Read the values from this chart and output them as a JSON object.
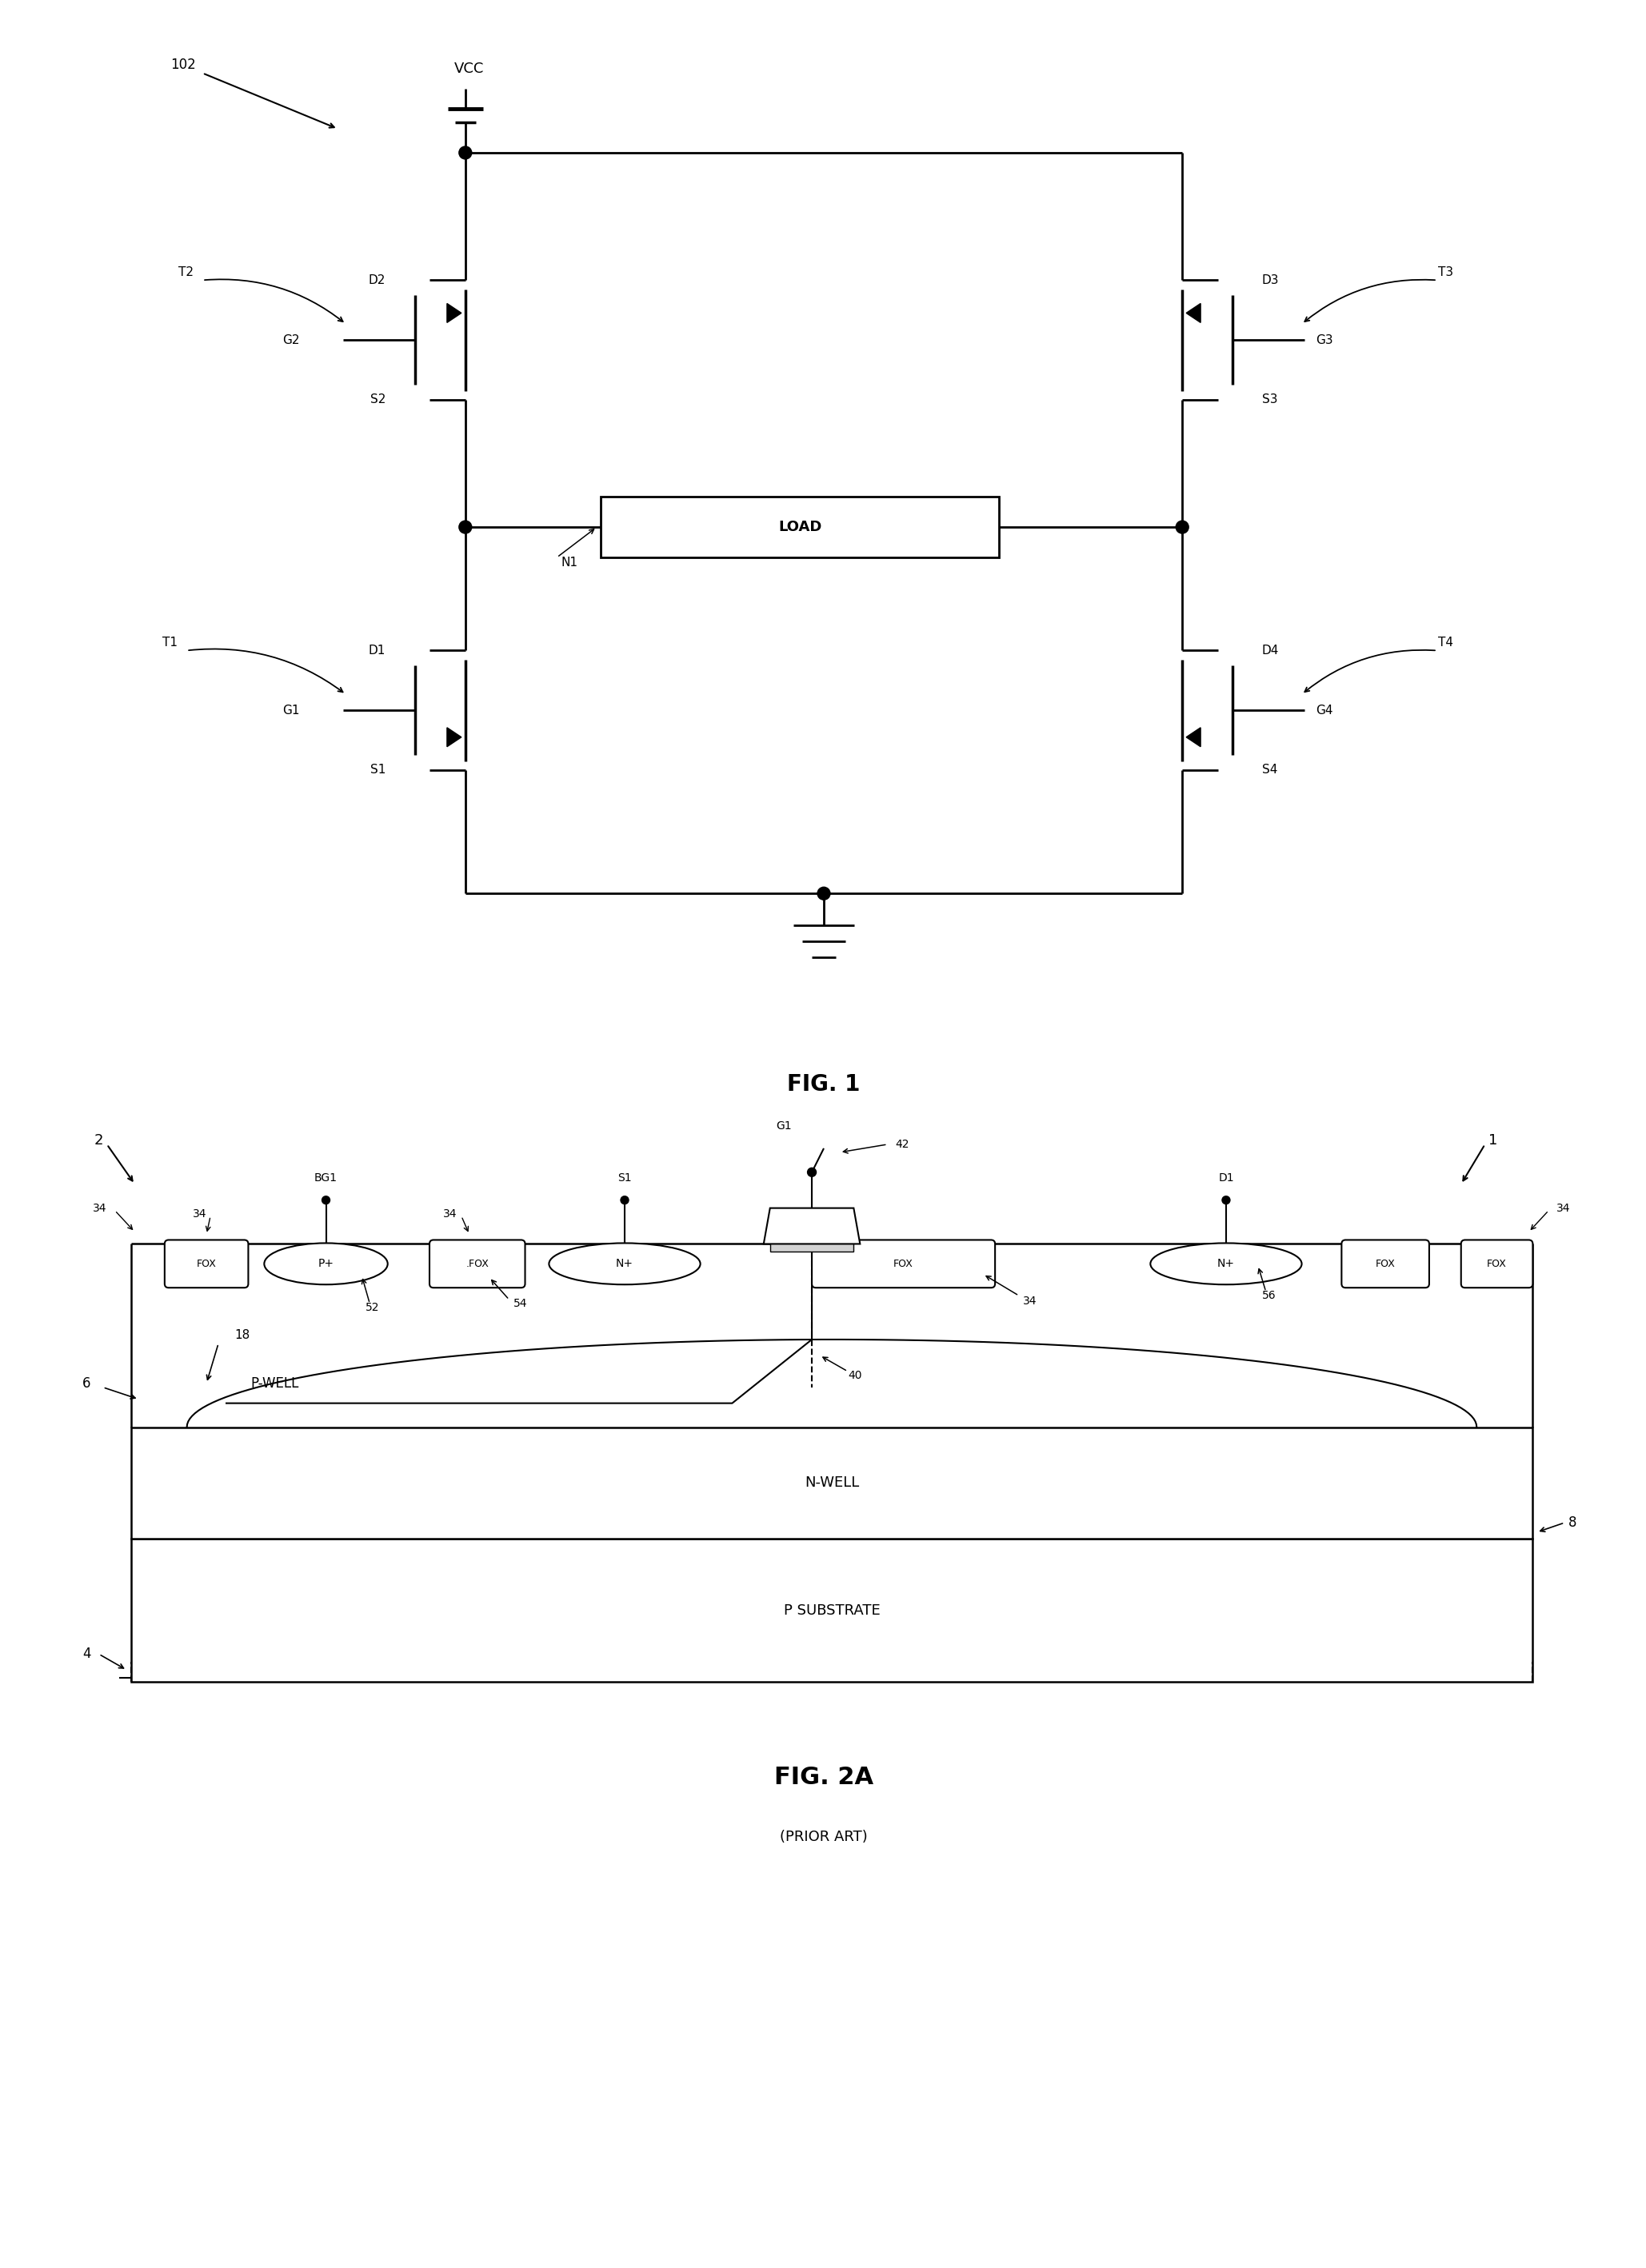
{
  "fig_width": 20.58,
  "fig_height": 28.36,
  "bg_color": "#ffffff",
  "line_color": "#000000",
  "fig1_title": "FIG. 1",
  "fig2a_title": "FIG. 2A",
  "fig2a_subtitle": "(PRIOR ART)",
  "lw_main": 2.0,
  "lw_thin": 1.5
}
